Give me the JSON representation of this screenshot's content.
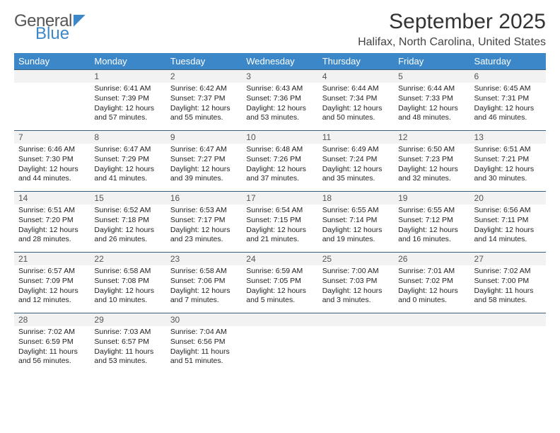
{
  "brand": {
    "line1": "General",
    "line2": "Blue",
    "icon": "◤"
  },
  "title": "September 2025",
  "location": "Halifax, North Carolina, United States",
  "colors": {
    "accent": "#3b87c8",
    "row_border": "#3b5f7a",
    "day_header_bg": "#f2f2f2",
    "header_text": "#ffffff",
    "background": "#ffffff"
  },
  "calendar": {
    "weekdays": [
      "Sunday",
      "Monday",
      "Tuesday",
      "Wednesday",
      "Thursday",
      "Friday",
      "Saturday"
    ],
    "first_weekday_index": 1,
    "days": [
      {
        "n": 1,
        "sunrise": "6:41 AM",
        "sunset": "7:39 PM",
        "daylight": "12 hours and 57 minutes."
      },
      {
        "n": 2,
        "sunrise": "6:42 AM",
        "sunset": "7:37 PM",
        "daylight": "12 hours and 55 minutes."
      },
      {
        "n": 3,
        "sunrise": "6:43 AM",
        "sunset": "7:36 PM",
        "daylight": "12 hours and 53 minutes."
      },
      {
        "n": 4,
        "sunrise": "6:44 AM",
        "sunset": "7:34 PM",
        "daylight": "12 hours and 50 minutes."
      },
      {
        "n": 5,
        "sunrise": "6:44 AM",
        "sunset": "7:33 PM",
        "daylight": "12 hours and 48 minutes."
      },
      {
        "n": 6,
        "sunrise": "6:45 AM",
        "sunset": "7:31 PM",
        "daylight": "12 hours and 46 minutes."
      },
      {
        "n": 7,
        "sunrise": "6:46 AM",
        "sunset": "7:30 PM",
        "daylight": "12 hours and 44 minutes."
      },
      {
        "n": 8,
        "sunrise": "6:47 AM",
        "sunset": "7:29 PM",
        "daylight": "12 hours and 41 minutes."
      },
      {
        "n": 9,
        "sunrise": "6:47 AM",
        "sunset": "7:27 PM",
        "daylight": "12 hours and 39 minutes."
      },
      {
        "n": 10,
        "sunrise": "6:48 AM",
        "sunset": "7:26 PM",
        "daylight": "12 hours and 37 minutes."
      },
      {
        "n": 11,
        "sunrise": "6:49 AM",
        "sunset": "7:24 PM",
        "daylight": "12 hours and 35 minutes."
      },
      {
        "n": 12,
        "sunrise": "6:50 AM",
        "sunset": "7:23 PM",
        "daylight": "12 hours and 32 minutes."
      },
      {
        "n": 13,
        "sunrise": "6:51 AM",
        "sunset": "7:21 PM",
        "daylight": "12 hours and 30 minutes."
      },
      {
        "n": 14,
        "sunrise": "6:51 AM",
        "sunset": "7:20 PM",
        "daylight": "12 hours and 28 minutes."
      },
      {
        "n": 15,
        "sunrise": "6:52 AM",
        "sunset": "7:18 PM",
        "daylight": "12 hours and 26 minutes."
      },
      {
        "n": 16,
        "sunrise": "6:53 AM",
        "sunset": "7:17 PM",
        "daylight": "12 hours and 23 minutes."
      },
      {
        "n": 17,
        "sunrise": "6:54 AM",
        "sunset": "7:15 PM",
        "daylight": "12 hours and 21 minutes."
      },
      {
        "n": 18,
        "sunrise": "6:55 AM",
        "sunset": "7:14 PM",
        "daylight": "12 hours and 19 minutes."
      },
      {
        "n": 19,
        "sunrise": "6:55 AM",
        "sunset": "7:12 PM",
        "daylight": "12 hours and 16 minutes."
      },
      {
        "n": 20,
        "sunrise": "6:56 AM",
        "sunset": "7:11 PM",
        "daylight": "12 hours and 14 minutes."
      },
      {
        "n": 21,
        "sunrise": "6:57 AM",
        "sunset": "7:09 PM",
        "daylight": "12 hours and 12 minutes."
      },
      {
        "n": 22,
        "sunrise": "6:58 AM",
        "sunset": "7:08 PM",
        "daylight": "12 hours and 10 minutes."
      },
      {
        "n": 23,
        "sunrise": "6:58 AM",
        "sunset": "7:06 PM",
        "daylight": "12 hours and 7 minutes."
      },
      {
        "n": 24,
        "sunrise": "6:59 AM",
        "sunset": "7:05 PM",
        "daylight": "12 hours and 5 minutes."
      },
      {
        "n": 25,
        "sunrise": "7:00 AM",
        "sunset": "7:03 PM",
        "daylight": "12 hours and 3 minutes."
      },
      {
        "n": 26,
        "sunrise": "7:01 AM",
        "sunset": "7:02 PM",
        "daylight": "12 hours and 0 minutes."
      },
      {
        "n": 27,
        "sunrise": "7:02 AM",
        "sunset": "7:00 PM",
        "daylight": "11 hours and 58 minutes."
      },
      {
        "n": 28,
        "sunrise": "7:02 AM",
        "sunset": "6:59 PM",
        "daylight": "11 hours and 56 minutes."
      },
      {
        "n": 29,
        "sunrise": "7:03 AM",
        "sunset": "6:57 PM",
        "daylight": "11 hours and 53 minutes."
      },
      {
        "n": 30,
        "sunrise": "7:04 AM",
        "sunset": "6:56 PM",
        "daylight": "11 hours and 51 minutes."
      }
    ],
    "labels": {
      "sunrise": "Sunrise:",
      "sunset": "Sunset:",
      "daylight": "Daylight:"
    }
  }
}
